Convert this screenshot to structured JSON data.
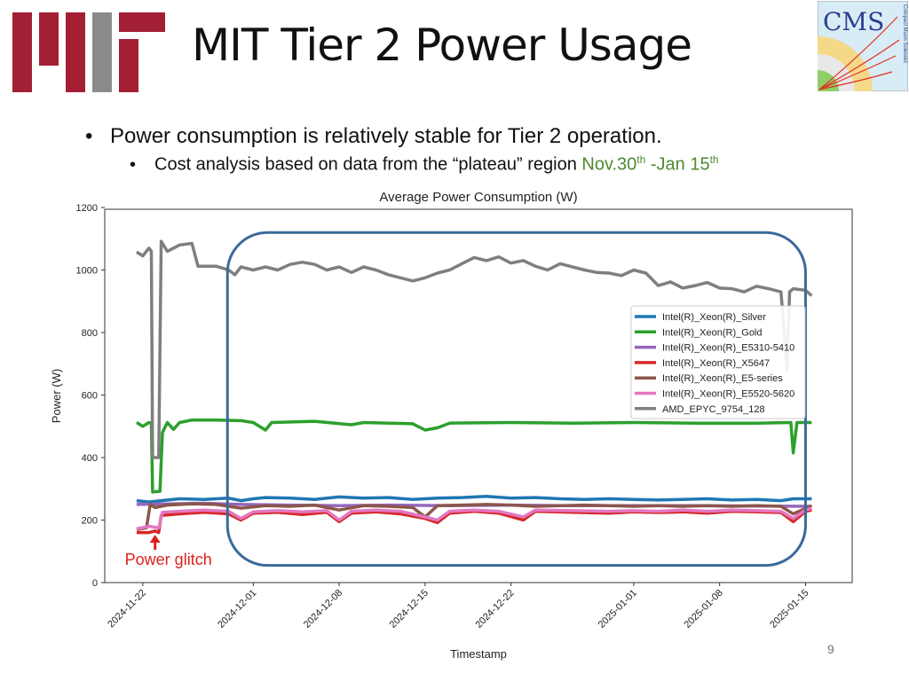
{
  "slide": {
    "title": "MIT Tier 2 Power Usage",
    "bullet1": "Power consumption is relatively stable for Tier 2 operation.",
    "bullet2_prefix": "Cost analysis based on data from the “plateau” region ",
    "bullet2_range_start": "Nov.30",
    "bullet2_sup1": "th",
    "bullet2_range_mid": " -Jan 15",
    "bullet2_sup2": "th",
    "page_number": "9",
    "logos": {
      "left": "MIT",
      "right": "CMS"
    },
    "cms_logo_subtext": "Compact Muon Solenoid"
  },
  "chart_data": {
    "type": "line",
    "title": "Average Power Consumption (W)",
    "xlabel": "Timestamp",
    "ylabel": "Power (W)",
    "ylim": [
      0,
      1200
    ],
    "yticks": [
      "0",
      "200",
      "400",
      "600",
      "800",
      "1000",
      "1200"
    ],
    "x_units": "days since 2024-11-22",
    "xlim": [
      -3.1,
      57.8
    ],
    "xticks": [
      {
        "day": 0,
        "label": "2024-11-22"
      },
      {
        "day": 9,
        "label": "2024-12-01"
      },
      {
        "day": 16,
        "label": "2024-12-08"
      },
      {
        "day": 23,
        "label": "2024-12-15"
      },
      {
        "day": 30,
        "label": "2024-12-22"
      },
      {
        "day": 40,
        "label": "2025-01-01"
      },
      {
        "day": 47,
        "label": "2025-01-08"
      },
      {
        "day": 54,
        "label": "2025-01-15"
      }
    ],
    "legend_position": "center-right",
    "series": [
      {
        "name": "Intel(R)_Xeon(R)_Silver",
        "color": "#1f77b4",
        "points": [
          [
            -0.5,
            262
          ],
          [
            0.5,
            258
          ],
          [
            1.5,
            262
          ],
          [
            3,
            268
          ],
          [
            5,
            266
          ],
          [
            7,
            270
          ],
          [
            8,
            262
          ],
          [
            9,
            268
          ],
          [
            10,
            272
          ],
          [
            12,
            270
          ],
          [
            14,
            266
          ],
          [
            16,
            274
          ],
          [
            18,
            270
          ],
          [
            20,
            272
          ],
          [
            22,
            266
          ],
          [
            24,
            270
          ],
          [
            26,
            272
          ],
          [
            28,
            276
          ],
          [
            30,
            270
          ],
          [
            32,
            272
          ],
          [
            34,
            268
          ],
          [
            36,
            266
          ],
          [
            38,
            268
          ],
          [
            40,
            266
          ],
          [
            42,
            264
          ],
          [
            44,
            266
          ],
          [
            46,
            268
          ],
          [
            48,
            264
          ],
          [
            50,
            266
          ],
          [
            52,
            262
          ],
          [
            53,
            268
          ],
          [
            54.5,
            268
          ]
        ]
      },
      {
        "name": "Intel(R)_Xeon(R)_Gold",
        "color": "#2ca02c",
        "points": [
          [
            -0.5,
            512
          ],
          [
            0,
            500
          ],
          [
            0.5,
            512
          ],
          [
            0.7,
            510
          ],
          [
            0.8,
            290
          ],
          [
            1.4,
            292
          ],
          [
            1.6,
            480
          ],
          [
            2,
            512
          ],
          [
            2.5,
            490
          ],
          [
            3,
            512
          ],
          [
            4,
            520
          ],
          [
            6,
            520
          ],
          [
            8,
            518
          ],
          [
            9,
            512
          ],
          [
            10,
            488
          ],
          [
            10.5,
            512
          ],
          [
            14,
            516
          ],
          [
            17,
            505
          ],
          [
            18,
            512
          ],
          [
            22,
            508
          ],
          [
            23,
            488
          ],
          [
            24,
            495
          ],
          [
            25,
            510
          ],
          [
            30,
            512
          ],
          [
            35,
            510
          ],
          [
            40,
            512
          ],
          [
            45,
            510
          ],
          [
            50,
            510
          ],
          [
            52.8,
            512
          ],
          [
            53,
            415
          ],
          [
            53.3,
            512
          ],
          [
            54.5,
            512
          ]
        ]
      },
      {
        "name": "Intel(R)_Xeon(R)_E5310-5410",
        "color": "#9467bd",
        "points": [
          [
            -0.5,
            250
          ],
          [
            2,
            252
          ],
          [
            5,
            254
          ],
          [
            8,
            250
          ],
          [
            12,
            248
          ],
          [
            16,
            246
          ],
          [
            20,
            248
          ],
          [
            25,
            246
          ],
          [
            30,
            248
          ],
          [
            35,
            246
          ],
          [
            40,
            246
          ],
          [
            45,
            246
          ],
          [
            50,
            245
          ],
          [
            54.5,
            244
          ]
        ]
      },
      {
        "name": "Intel(R)_Xeon(R)_X5647",
        "color": "#d62728",
        "points": [
          [
            -0.5,
            160
          ],
          [
            0.5,
            160
          ],
          [
            1,
            165
          ],
          [
            1.3,
            160
          ],
          [
            1.5,
            215
          ],
          [
            3,
            220
          ],
          [
            5,
            225
          ],
          [
            7,
            220
          ],
          [
            8,
            200
          ],
          [
            9,
            222
          ],
          [
            11,
            225
          ],
          [
            13,
            218
          ],
          [
            15,
            225
          ],
          [
            16,
            195
          ],
          [
            17,
            222
          ],
          [
            19,
            226
          ],
          [
            21,
            220
          ],
          [
            23,
            205
          ],
          [
            24,
            192
          ],
          [
            25,
            222
          ],
          [
            27,
            228
          ],
          [
            29,
            222
          ],
          [
            31,
            200
          ],
          [
            32,
            228
          ],
          [
            35,
            225
          ],
          [
            38,
            222
          ],
          [
            40,
            226
          ],
          [
            42,
            224
          ],
          [
            44,
            226
          ],
          [
            46,
            222
          ],
          [
            48,
            228
          ],
          [
            50,
            226
          ],
          [
            52,
            224
          ],
          [
            53,
            195
          ],
          [
            54,
            228
          ],
          [
            54.5,
            232
          ]
        ]
      },
      {
        "name": "Intel(R)_Xeon(R)_E5-series",
        "color": "#8c564b",
        "points": [
          [
            -0.5,
            170
          ],
          [
            0.3,
            175
          ],
          [
            0.6,
            250
          ],
          [
            1,
            240
          ],
          [
            2,
            248
          ],
          [
            4,
            252
          ],
          [
            6,
            250
          ],
          [
            8,
            238
          ],
          [
            10,
            246
          ],
          [
            12,
            244
          ],
          [
            14,
            248
          ],
          [
            16,
            232
          ],
          [
            18,
            246
          ],
          [
            20,
            244
          ],
          [
            22,
            240
          ],
          [
            23,
            210
          ],
          [
            24,
            246
          ],
          [
            26,
            248
          ],
          [
            28,
            250
          ],
          [
            30,
            248
          ],
          [
            32,
            244
          ],
          [
            34,
            246
          ],
          [
            36,
            248
          ],
          [
            38,
            246
          ],
          [
            40,
            244
          ],
          [
            42,
            246
          ],
          [
            44,
            244
          ],
          [
            46,
            246
          ],
          [
            48,
            244
          ],
          [
            50,
            246
          ],
          [
            52,
            244
          ],
          [
            53,
            220
          ],
          [
            54.5,
            246
          ]
        ]
      },
      {
        "name": "Intel(R)_Xeon(R)_E5520-5620",
        "color": "#e377c2",
        "points": [
          [
            -0.5,
            172
          ],
          [
            0.5,
            180
          ],
          [
            1.3,
            175
          ],
          [
            1.6,
            225
          ],
          [
            3,
            228
          ],
          [
            5,
            232
          ],
          [
            7,
            228
          ],
          [
            8,
            205
          ],
          [
            9,
            226
          ],
          [
            11,
            230
          ],
          [
            13,
            226
          ],
          [
            15,
            230
          ],
          [
            16,
            200
          ],
          [
            17,
            228
          ],
          [
            19,
            232
          ],
          [
            21,
            228
          ],
          [
            23,
            210
          ],
          [
            24,
            200
          ],
          [
            25,
            228
          ],
          [
            27,
            232
          ],
          [
            29,
            228
          ],
          [
            31,
            210
          ],
          [
            32,
            232
          ],
          [
            35,
            230
          ],
          [
            38,
            228
          ],
          [
            40,
            230
          ],
          [
            42,
            228
          ],
          [
            44,
            232
          ],
          [
            46,
            228
          ],
          [
            48,
            232
          ],
          [
            50,
            230
          ],
          [
            52,
            228
          ],
          [
            53,
            205
          ],
          [
            54,
            232
          ],
          [
            54.5,
            238
          ]
        ]
      },
      {
        "name": "AMD_EPYC_9754_128",
        "color": "#7f7f7f",
        "points": [
          [
            -0.5,
            1058
          ],
          [
            0,
            1045
          ],
          [
            0.5,
            1070
          ],
          [
            0.7,
            1060
          ],
          [
            0.8,
            400
          ],
          [
            1.3,
            400
          ],
          [
            1.5,
            1092
          ],
          [
            2,
            1060
          ],
          [
            3,
            1080
          ],
          [
            4,
            1085
          ],
          [
            4.5,
            1012
          ],
          [
            6,
            1012
          ],
          [
            7,
            1000
          ],
          [
            7.5,
            985
          ],
          [
            8,
            1010
          ],
          [
            9,
            1000
          ],
          [
            10,
            1010
          ],
          [
            11,
            1000
          ],
          [
            12,
            1018
          ],
          [
            13,
            1025
          ],
          [
            14,
            1018
          ],
          [
            15,
            1000
          ],
          [
            16,
            1010
          ],
          [
            17,
            992
          ],
          [
            18,
            1010
          ],
          [
            19,
            1000
          ],
          [
            20,
            985
          ],
          [
            22,
            965
          ],
          [
            23,
            975
          ],
          [
            24,
            990
          ],
          [
            25,
            1000
          ],
          [
            26,
            1020
          ],
          [
            27,
            1040
          ],
          [
            28,
            1030
          ],
          [
            29,
            1042
          ],
          [
            30,
            1022
          ],
          [
            31,
            1030
          ],
          [
            32,
            1012
          ],
          [
            33,
            1000
          ],
          [
            34,
            1020
          ],
          [
            35,
            1010
          ],
          [
            36,
            1000
          ],
          [
            37,
            992
          ],
          [
            38,
            990
          ],
          [
            39,
            982
          ],
          [
            40,
            1000
          ],
          [
            41,
            990
          ],
          [
            42,
            950
          ],
          [
            43,
            962
          ],
          [
            44,
            942
          ],
          [
            45,
            950
          ],
          [
            46,
            960
          ],
          [
            47,
            942
          ],
          [
            48,
            940
          ],
          [
            49,
            930
          ],
          [
            50,
            948
          ],
          [
            51,
            940
          ],
          [
            52,
            930
          ],
          [
            52.5,
            680
          ],
          [
            52.7,
            930
          ],
          [
            53,
            940
          ],
          [
            54,
            935
          ],
          [
            54.5,
            918
          ]
        ]
      }
    ],
    "annotations": [
      {
        "type": "rounded-rect",
        "label": "plateau region",
        "x_range": [
          6.9,
          54
        ],
        "y_range": [
          55,
          1120
        ],
        "color": "#3a6a9a"
      },
      {
        "type": "arrow-text",
        "text": "Power glitch",
        "x": 1,
        "y": 165,
        "color": "#e02020"
      }
    ]
  }
}
